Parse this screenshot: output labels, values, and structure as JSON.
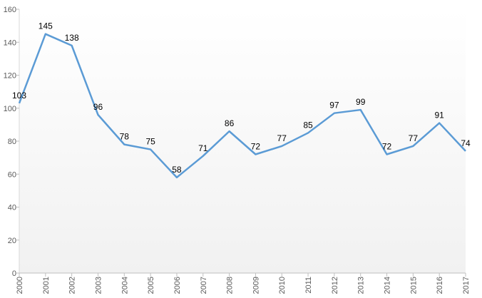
{
  "chart_data": {
    "type": "line",
    "title": "",
    "xlabel": "",
    "ylabel": "",
    "x": [
      "2000",
      "2001",
      "2002",
      "2003",
      "2004",
      "2005",
      "2006",
      "2007",
      "2008",
      "2009",
      "2010",
      "2011",
      "2012",
      "2013",
      "2014",
      "2015",
      "2016",
      "2017"
    ],
    "series": [
      {
        "values": [
          103,
          145,
          138,
          96,
          78,
          75,
          58,
          71,
          86,
          72,
          77,
          85,
          97,
          99,
          72,
          77,
          91,
          74
        ]
      }
    ],
    "ylim": [
      0,
      160
    ],
    "yticks": [
      0,
      20,
      40,
      60,
      80,
      100,
      120,
      140,
      160
    ],
    "grid": false,
    "legend": "none",
    "line_color": "#5B9BD5",
    "background_gradient": [
      "#ffffff",
      "#f1f1f1"
    ]
  }
}
